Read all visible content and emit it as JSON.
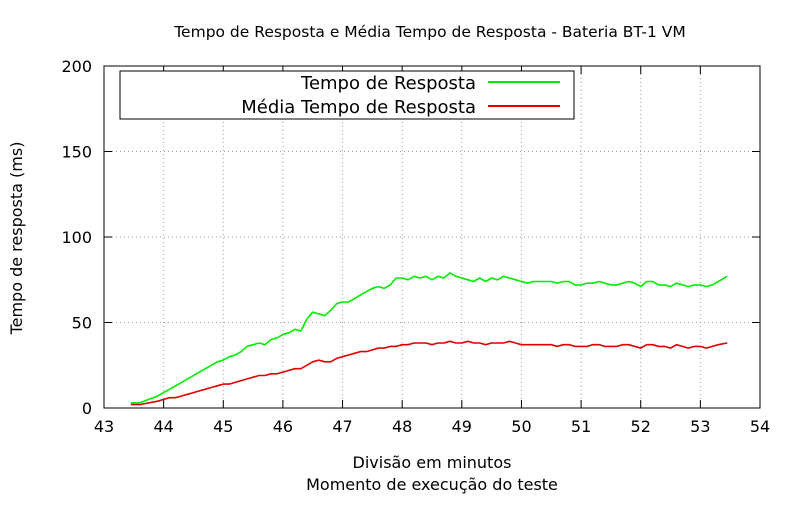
{
  "chart_data": {
    "type": "line",
    "title": "Tempo de Resposta e Média Tempo de Resposta - Bateria BT-1 VM",
    "xlabel": "Divisão em minutos",
    "xlabel2": "Momento de execução do teste",
    "ylabel": "Tempo de resposta (ms)",
    "xlim": [
      43,
      54
    ],
    "ylim": [
      0,
      200
    ],
    "xticks": [
      "43",
      "44",
      "45",
      "46",
      "47",
      "48",
      "49",
      "50",
      "51",
      "52",
      "53",
      "54"
    ],
    "yticks": [
      "0",
      "50",
      "100",
      "150",
      "200"
    ],
    "grid": true,
    "legend_position": "top-left",
    "series": [
      {
        "name": "Tempo de Resposta",
        "color": "#00ee00",
        "x": [
          43.45,
          43.6,
          43.75,
          43.9,
          44.0,
          44.1,
          44.2,
          44.3,
          44.4,
          44.5,
          44.6,
          44.7,
          44.8,
          44.9,
          45.0,
          45.1,
          45.2,
          45.3,
          45.4,
          45.5,
          45.6,
          45.7,
          45.8,
          45.9,
          46.0,
          46.1,
          46.2,
          46.3,
          46.4,
          46.5,
          46.6,
          46.7,
          46.8,
          46.9,
          47.0,
          47.1,
          47.2,
          47.3,
          47.4,
          47.5,
          47.6,
          47.7,
          47.8,
          47.9,
          48.0,
          48.1,
          48.2,
          48.3,
          48.4,
          48.5,
          48.6,
          48.7,
          48.8,
          48.9,
          49.0,
          49.1,
          49.2,
          49.3,
          49.4,
          49.5,
          49.6,
          49.7,
          49.8,
          49.9,
          50.0,
          50.1,
          50.2,
          50.3,
          50.4,
          50.5,
          50.6,
          50.7,
          50.8,
          50.9,
          51.0,
          51.1,
          51.2,
          51.3,
          51.4,
          51.5,
          51.6,
          51.7,
          51.8,
          51.9,
          52.0,
          52.1,
          52.2,
          52.3,
          52.4,
          52.5,
          52.6,
          52.7,
          52.8,
          52.9,
          53.0,
          53.1,
          53.2,
          53.3,
          53.45
        ],
        "y": [
          3,
          3,
          5,
          7,
          9,
          11,
          13,
          15,
          17,
          19,
          21,
          23,
          25,
          27,
          28,
          30,
          31,
          33,
          36,
          37,
          38,
          37,
          40,
          41,
          43,
          44,
          46,
          45,
          52,
          56,
          55,
          54,
          57,
          61,
          62,
          62,
          64,
          66,
          68,
          70,
          71,
          70,
          72,
          76,
          76,
          75,
          77,
          76,
          77,
          75,
          77,
          76,
          79,
          77,
          76,
          75,
          74,
          76,
          74,
          76,
          75,
          77,
          76,
          75,
          74,
          73,
          74,
          74,
          74,
          74,
          73,
          74,
          74,
          72,
          72,
          73,
          73,
          74,
          73,
          72,
          72,
          73,
          74,
          73,
          71,
          74,
          74,
          72,
          72,
          71,
          73,
          72,
          71,
          72,
          72,
          71,
          72,
          74,
          77
        ]
      },
      {
        "name": "Média Tempo de Resposta",
        "color": "#dd0000",
        "x": [
          43.45,
          43.6,
          43.75,
          43.9,
          44.0,
          44.1,
          44.2,
          44.3,
          44.4,
          44.5,
          44.6,
          44.7,
          44.8,
          44.9,
          45.0,
          45.1,
          45.2,
          45.3,
          45.4,
          45.5,
          45.6,
          45.7,
          45.8,
          45.9,
          46.0,
          46.1,
          46.2,
          46.3,
          46.4,
          46.5,
          46.6,
          46.7,
          46.8,
          46.9,
          47.0,
          47.1,
          47.2,
          47.3,
          47.4,
          47.5,
          47.6,
          47.7,
          47.8,
          47.9,
          48.0,
          48.1,
          48.2,
          48.3,
          48.4,
          48.5,
          48.6,
          48.7,
          48.8,
          48.9,
          49.0,
          49.1,
          49.2,
          49.3,
          49.4,
          49.5,
          49.6,
          49.7,
          49.8,
          49.9,
          50.0,
          50.1,
          50.2,
          50.3,
          50.4,
          50.5,
          50.6,
          50.7,
          50.8,
          50.9,
          51.0,
          51.1,
          51.2,
          51.3,
          51.4,
          51.5,
          51.6,
          51.7,
          51.8,
          51.9,
          52.0,
          52.1,
          52.2,
          52.3,
          52.4,
          52.5,
          52.6,
          52.7,
          52.8,
          52.9,
          53.0,
          53.1,
          53.2,
          53.3,
          53.45
        ],
        "y": [
          2,
          2,
          3,
          4,
          5,
          6,
          6,
          7,
          8,
          9,
          10,
          11,
          12,
          13,
          14,
          14,
          15,
          16,
          17,
          18,
          19,
          19,
          20,
          20,
          21,
          22,
          23,
          23,
          25,
          27,
          28,
          27,
          27,
          29,
          30,
          31,
          32,
          33,
          33,
          34,
          35,
          35,
          36,
          36,
          37,
          37,
          38,
          38,
          38,
          37,
          38,
          38,
          39,
          38,
          38,
          39,
          38,
          38,
          37,
          38,
          38,
          38,
          39,
          38,
          37,
          37,
          37,
          37,
          37,
          37,
          36,
          37,
          37,
          36,
          36,
          36,
          37,
          37,
          36,
          36,
          36,
          37,
          37,
          36,
          35,
          37,
          37,
          36,
          36,
          35,
          37,
          36,
          35,
          36,
          36,
          35,
          36,
          37,
          38
        ]
      }
    ]
  }
}
